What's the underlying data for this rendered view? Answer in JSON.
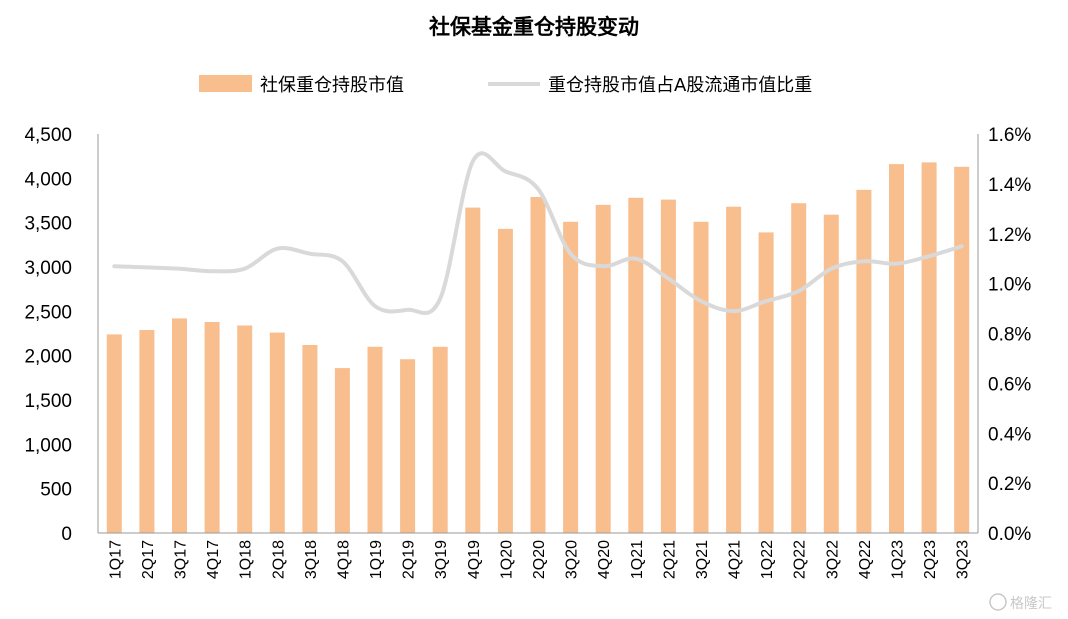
{
  "chart_data": {
    "type": "bar+line",
    "title": "社保基金重仓持股变动",
    "categories": [
      "1Q17",
      "2Q17",
      "3Q17",
      "4Q17",
      "1Q18",
      "2Q18",
      "3Q18",
      "4Q18",
      "1Q19",
      "2Q19",
      "3Q19",
      "4Q19",
      "1Q20",
      "2Q20",
      "3Q20",
      "4Q20",
      "1Q21",
      "2Q21",
      "3Q21",
      "4Q21",
      "1Q22",
      "2Q22",
      "3Q22",
      "4Q22",
      "1Q23",
      "2Q23",
      "3Q23"
    ],
    "series": [
      {
        "name": "社保重仓持股市值",
        "kind": "bar",
        "axis": "left",
        "color": "#F9BE8E",
        "values": [
          2240,
          2290,
          2420,
          2380,
          2340,
          2260,
          2120,
          1860,
          2100,
          1960,
          2100,
          3670,
          3430,
          3790,
          3510,
          3700,
          3780,
          3760,
          3510,
          3680,
          3390,
          3720,
          3590,
          3870,
          4160,
          4180,
          4130
        ]
      },
      {
        "name": "重仓持股市值占A股流通市值比重",
        "kind": "line",
        "axis": "right",
        "color": "#D9D9D9",
        "values": [
          1.07,
          1.065,
          1.06,
          1.05,
          1.06,
          1.14,
          1.12,
          1.09,
          0.91,
          0.895,
          0.94,
          1.49,
          1.45,
          1.38,
          1.12,
          1.07,
          1.1,
          1.02,
          0.93,
          0.89,
          0.93,
          0.97,
          1.06,
          1.09,
          1.08,
          1.11,
          1.15
        ]
      }
    ],
    "y_left": {
      "min": 0,
      "max": 4500,
      "ticks": [
        "0",
        "500",
        "1,000",
        "1,500",
        "2,000",
        "2,500",
        "3,000",
        "3,500",
        "4,000",
        "4,500"
      ]
    },
    "y_right": {
      "min": 0,
      "max": 1.6,
      "ticks": [
        "0.0%",
        "0.2%",
        "0.4%",
        "0.6%",
        "0.8%",
        "1.0%",
        "1.2%",
        "1.4%",
        "1.6%"
      ]
    },
    "grid": false,
    "legend_position": "top"
  },
  "watermark": "格隆汇"
}
